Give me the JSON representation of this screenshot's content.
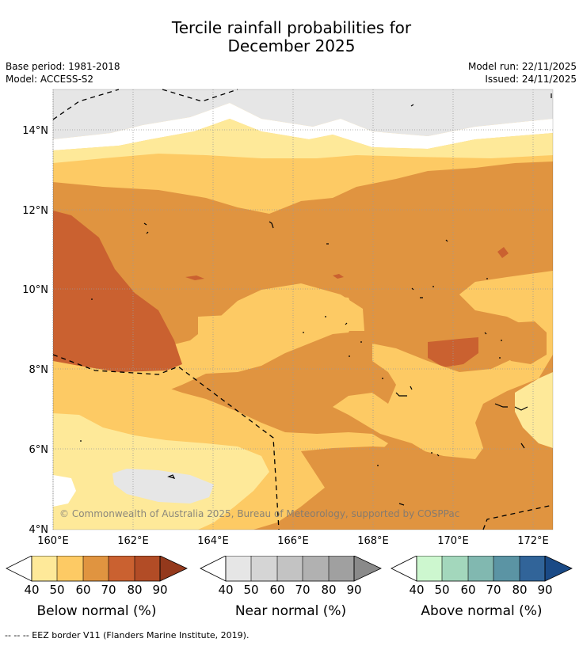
{
  "title": {
    "line1": "Tercile rainfall probabilities for",
    "line2": "December 2025"
  },
  "meta": {
    "base_period": "Base period: 1981-2018",
    "model": "Model: ACCESS-S2",
    "model_run": "Model run: 22/11/2025",
    "issued": "Issued: 24/11/2025"
  },
  "map": {
    "lon_labels": [
      "160°E",
      "162°E",
      "164°E",
      "166°E",
      "168°E",
      "170°E",
      "172°E"
    ],
    "lat_labels": [
      "14°N",
      "12°N",
      "10°N",
      "8°N",
      "6°N",
      "4°N"
    ],
    "credit": "© Commonwealth of Australia 2025, Bureau of Meteorology, supported by COSPPac"
  },
  "colorbars": [
    {
      "label": "Below normal (%)",
      "ticks": [
        "40",
        "50",
        "60",
        "70",
        "80",
        "90"
      ],
      "colors": [
        "#fee999",
        "#fdca64",
        "#e09440",
        "#ca6130",
        "#b24c26",
        "#94391c"
      ]
    },
    {
      "label": "Near normal (%)",
      "ticks": [
        "40",
        "50",
        "60",
        "70",
        "80",
        "90"
      ],
      "colors": [
        "#e6e6e6",
        "#d5d5d5",
        "#c3c3c3",
        "#b1b1b1",
        "#a0a0a0",
        "#8a8a8a"
      ]
    },
    {
      "label": "Above normal (%)",
      "ticks": [
        "40",
        "50",
        "60",
        "70",
        "80",
        "90"
      ],
      "colors": [
        "#cdf7cf",
        "#a3d7bc",
        "#81b8b0",
        "#5b94a4",
        "#316499",
        "#1a4a86"
      ]
    }
  ],
  "footnote": "--  --  -- EEZ border V11 (Flanders Marine Institute, 2019)."
}
